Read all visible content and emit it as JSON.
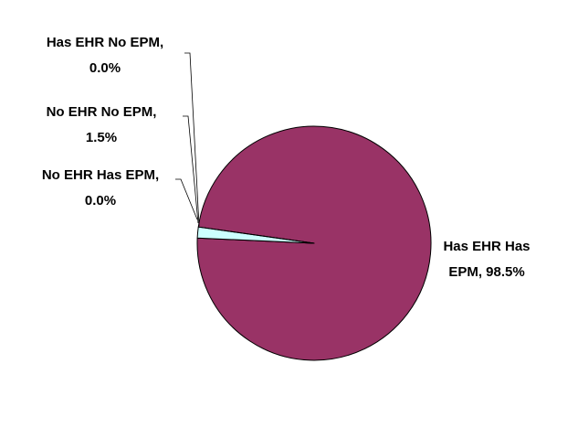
{
  "chart_data": {
    "type": "pie",
    "title": "",
    "slices": [
      {
        "label": "Has EHR Has EPM",
        "value": 98.5,
        "display": "98.5%",
        "color": "#993366"
      },
      {
        "label": "No EHR Has EPM",
        "value": 0.0,
        "display": "0.0%",
        "color": "#ffffcc"
      },
      {
        "label": "No EHR No EPM",
        "value": 1.5,
        "display": "1.5%",
        "color": "#ccffff"
      },
      {
        "label": "Has EHR No EPM",
        "value": 0.0,
        "display": "0.0%",
        "color": "#ffffff"
      }
    ],
    "legend": "none",
    "data_labels": "category-and-percent",
    "leader_lines": true,
    "slice_border_color": "#000000",
    "background_color": "#ffffff"
  }
}
